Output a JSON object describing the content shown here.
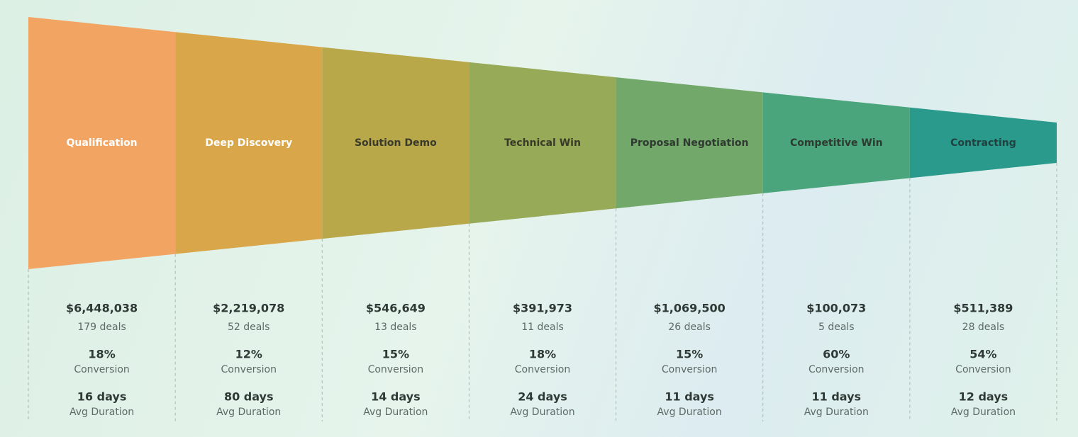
{
  "stages": [
    {
      "name": "Qualification",
      "amount": "$6,448,038",
      "deals": "179 deals",
      "conversion": "18%",
      "conversion_label": "Conversion",
      "duration": "16 days",
      "duration_label": "Avg Duration"
    },
    {
      "name": "Deep Discovery",
      "amount": "$2,219,078",
      "deals": "52 deals",
      "conversion": "12%",
      "conversion_label": "Conversion",
      "duration": "80 days",
      "duration_label": "Avg Duration"
    },
    {
      "name": "Solution Demo",
      "amount": "$546,649",
      "deals": "13 deals",
      "conversion": "15%",
      "conversion_label": "Conversion",
      "duration": "14 days",
      "duration_label": "Avg Duration"
    },
    {
      "name": "Technical Win",
      "amount": "$391,973",
      "deals": "11 deals",
      "conversion": "18%",
      "conversion_label": "Conversion",
      "duration": "24 days",
      "duration_label": "Avg Duration"
    },
    {
      "name": "Proposal Negotiation",
      "amount": "$1,069,500",
      "deals": "26 deals",
      "conversion": "15%",
      "conversion_label": "Conversion",
      "duration": "11 days",
      "duration_label": "Avg Duration"
    },
    {
      "name": "Competitive Win",
      "amount": "$100,073",
      "deals": "5 deals",
      "conversion": "60%",
      "conversion_label": "Conversion",
      "duration": "11 days",
      "duration_label": "Avg Duration"
    },
    {
      "name": "Contracting",
      "amount": "$511,389",
      "deals": "28 deals",
      "conversion": "54%",
      "conversion_label": "Conversion",
      "duration": "12 days",
      "duration_label": "Avg Duration"
    }
  ]
}
